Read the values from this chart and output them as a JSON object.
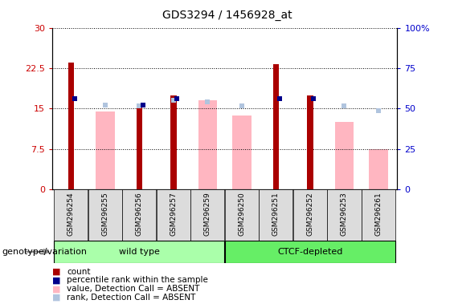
{
  "title": "GDS3294 / 1456928_at",
  "samples": [
    "GSM296254",
    "GSM296255",
    "GSM296256",
    "GSM296257",
    "GSM296259",
    "GSM296250",
    "GSM296251",
    "GSM296252",
    "GSM296253",
    "GSM296261"
  ],
  "count_values": [
    23.5,
    null,
    15.7,
    17.5,
    null,
    null,
    23.2,
    17.5,
    null,
    null
  ],
  "percentile_values": [
    56.0,
    null,
    52.0,
    56.0,
    null,
    null,
    56.0,
    56.0,
    null,
    null
  ],
  "absent_value_values": [
    null,
    14.5,
    null,
    null,
    16.5,
    13.7,
    null,
    null,
    12.5,
    7.5
  ],
  "absent_rank_values": [
    null,
    52.0,
    51.5,
    55.0,
    54.0,
    51.5,
    null,
    null,
    51.5,
    48.5
  ],
  "ylim_left": [
    0,
    30
  ],
  "ylim_right": [
    0,
    100
  ],
  "yticks_left": [
    0,
    7.5,
    15,
    22.5,
    30
  ],
  "ytick_labels_left": [
    "0",
    "7.5",
    "15",
    "22.5",
    "30"
  ],
  "yticks_right": [
    0,
    25,
    50,
    75,
    100
  ],
  "ytick_labels_right": [
    "0",
    "25",
    "50",
    "75",
    "100%"
  ],
  "count_color": "#AA0000",
  "percentile_color": "#00008B",
  "absent_value_color": "#FFB6C1",
  "absent_rank_color": "#B0C4DE",
  "legend_items": [
    {
      "label": "count",
      "color": "#AA0000"
    },
    {
      "label": "percentile rank within the sample",
      "color": "#00008B"
    },
    {
      "label": "value, Detection Call = ABSENT",
      "color": "#FFB6C1"
    },
    {
      "label": "rank, Detection Call = ABSENT",
      "color": "#B0C4DE"
    }
  ],
  "genotype_label": "genotype/variation",
  "axis_color_left": "#CC0000",
  "axis_color_right": "#0000CC",
  "wt_group": [
    0,
    4
  ],
  "ctcf_group": [
    5,
    9
  ],
  "wt_label": "wild type",
  "ctcf_label": "CTCF-depleted",
  "group_color_light": "#AAFFAA",
  "group_color_dark": "#66DD66"
}
